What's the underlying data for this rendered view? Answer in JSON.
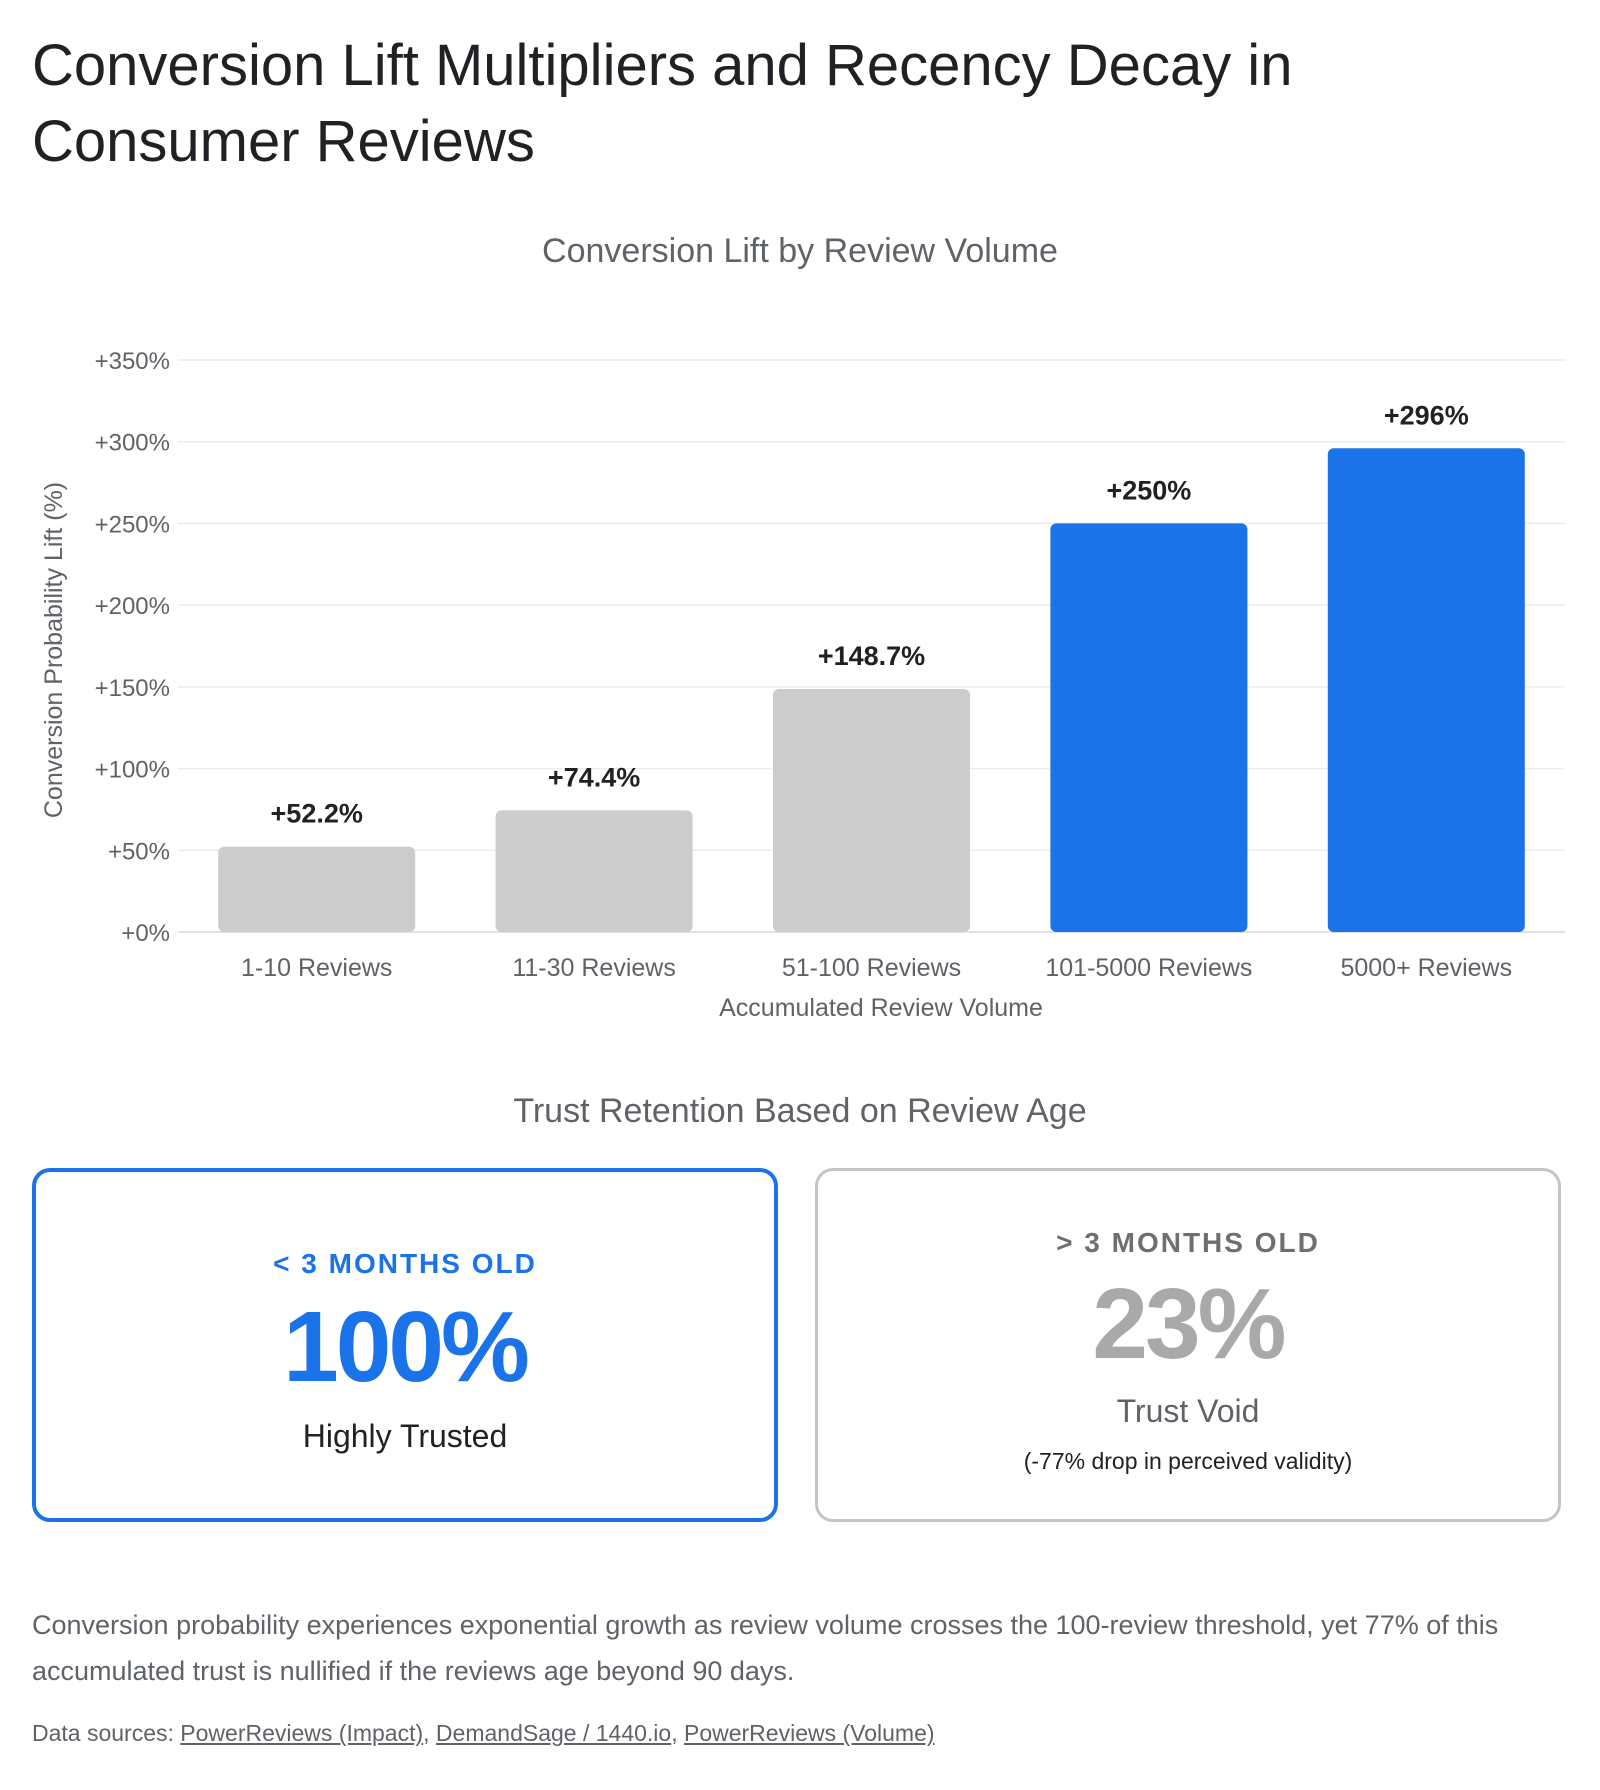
{
  "page": {
    "title": "Conversion Lift Multipliers and Recency Decay in Consumer Reviews"
  },
  "chart_data": {
    "type": "bar",
    "title": "Conversion Lift by Review Volume",
    "xlabel": "Accumulated Review Volume",
    "ylabel": "Conversion Probability Lift (%)",
    "ylim": [
      0,
      350
    ],
    "yticks": [
      "+0%",
      "+50%",
      "+100%",
      "+150%",
      "+200%",
      "+250%",
      "+300%",
      "+350%"
    ],
    "grid": true,
    "categories": [
      "1-10 Reviews",
      "11-30 Reviews",
      "51-100 Reviews",
      "101-5000 Reviews",
      "5000+ Reviews"
    ],
    "values": [
      52.2,
      74.4,
      148.7,
      250,
      296
    ],
    "data_labels": [
      "+52.2%",
      "+74.4%",
      "+148.7%",
      "+250%",
      "+296%"
    ],
    "colors": [
      "#cccccc",
      "#cccccc",
      "#cccccc",
      "#1a73e8",
      "#1a73e8"
    ]
  },
  "trust": {
    "title": "Trust Retention Based on Review Age",
    "recent": {
      "label": "< 3 MONTHS OLD",
      "value": "100%",
      "description": "Highly Trusted",
      "accent": "#1a73e8"
    },
    "old": {
      "label": "> 3 MONTHS OLD",
      "value": "23%",
      "description": "Trust Void",
      "note": "(-77% drop in perceived validity)",
      "accent": "#a9a9a9"
    }
  },
  "summary": "Conversion probability experiences exponential growth as review volume crosses the 100-review threshold, yet 77% of this accumulated trust is nullified if the reviews age beyond 90 days.",
  "sources": {
    "prefix": "Data sources:",
    "links": [
      "PowerReviews (Impact)",
      "DemandSage / 1440.io",
      "PowerReviews (Volume)"
    ]
  }
}
